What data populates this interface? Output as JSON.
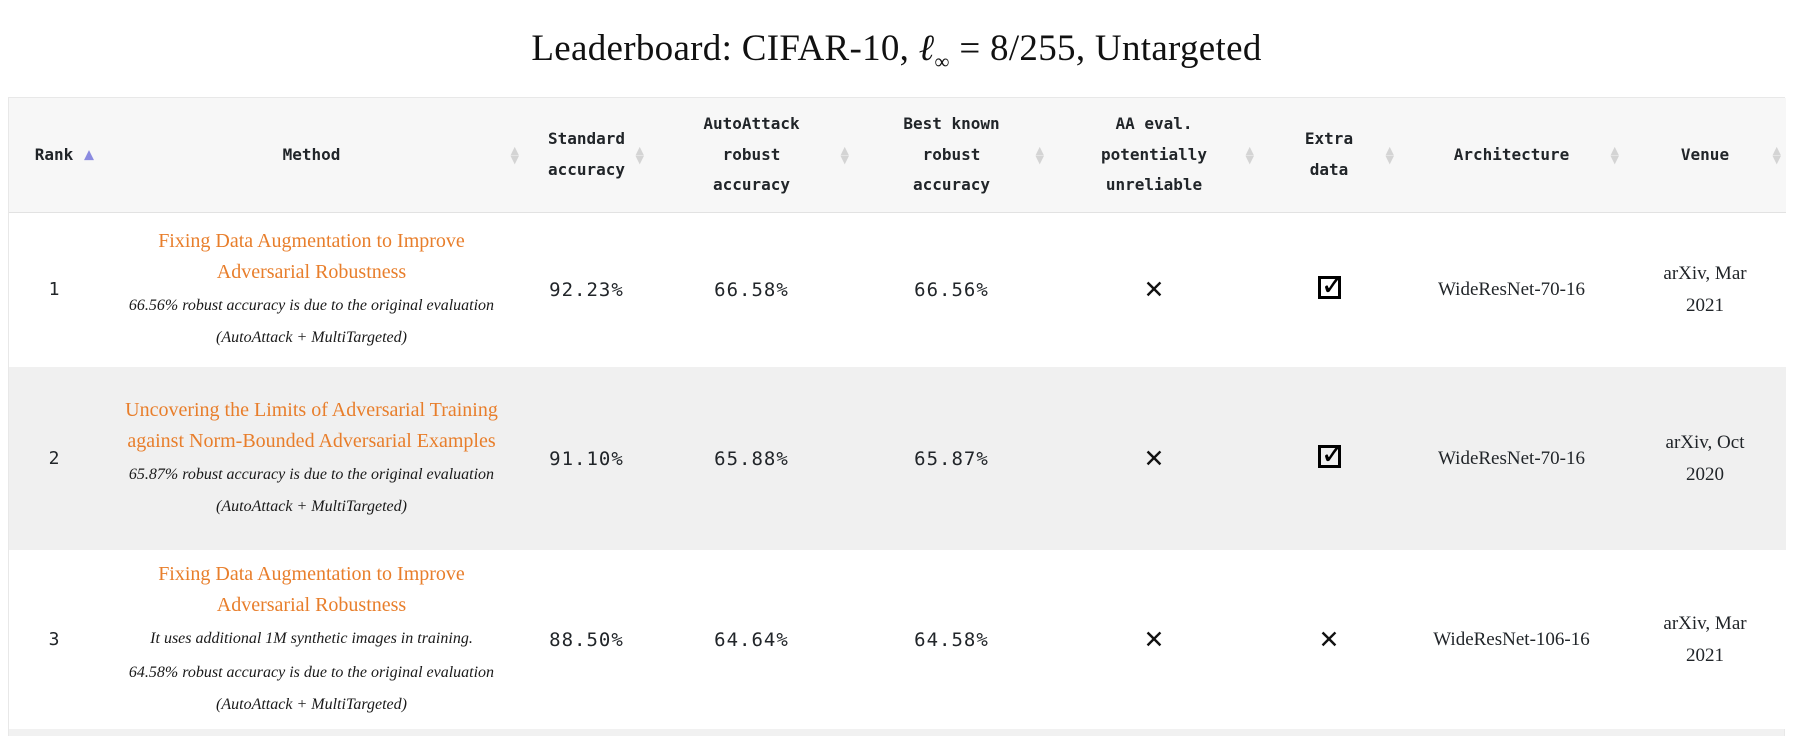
{
  "title": {
    "part1": "Leaderboard: CIFAR-10, ",
    "ell": "ℓ",
    "sub": "∞",
    "part2": " = 8/255, Untargeted"
  },
  "table": {
    "columns": [
      {
        "label": "Rank",
        "sort": "asc"
      },
      {
        "label": "Method",
        "sort": "both"
      },
      {
        "label": "Standard accuracy",
        "sort": "both"
      },
      {
        "label": "AutoAttack robust accuracy",
        "sort": "both"
      },
      {
        "label": "Best known robust accuracy",
        "sort": "both"
      },
      {
        "label": "AA eval. potentially unreliable",
        "sort": "both"
      },
      {
        "label": "Extra data",
        "sort": "both"
      },
      {
        "label": "Architecture",
        "sort": "both"
      },
      {
        "label": "Venue",
        "sort": "both"
      }
    ],
    "rows": [
      {
        "rank": "1",
        "method": "Fixing Data Augmentation to Improve Adversarial Robustness",
        "notes": [
          "66.56% robust accuracy is due to the original evaluation (AutoAttack + MultiTargeted)"
        ],
        "standard_accuracy": "92.23%",
        "autoattack_robust_accuracy": "66.58%",
        "best_known_robust_accuracy": "66.56%",
        "aa_eval_unreliable": "no",
        "extra_data": "yes",
        "architecture": "WideResNet-70-16",
        "venue": "arXiv, Mar 2021"
      },
      {
        "rank": "2",
        "method": "Uncovering the Limits of Adversarial Training against Norm-Bounded Adversarial Examples",
        "notes": [
          "65.87% robust accuracy is due to the original evaluation (AutoAttack + MultiTargeted)"
        ],
        "standard_accuracy": "91.10%",
        "autoattack_robust_accuracy": "65.88%",
        "best_known_robust_accuracy": "65.87%",
        "aa_eval_unreliable": "no",
        "extra_data": "yes",
        "architecture": "WideResNet-70-16",
        "venue": "arXiv, Oct 2020"
      },
      {
        "rank": "3",
        "method": "Fixing Data Augmentation to Improve Adversarial Robustness",
        "notes": [
          "It uses additional 1M synthetic images in training.",
          "64.58% robust accuracy is due to the original evaluation (AutoAttack + MultiTargeted)"
        ],
        "standard_accuracy": "88.50%",
        "autoattack_robust_accuracy": "64.64%",
        "best_known_robust_accuracy": "64.58%",
        "aa_eval_unreliable": "no",
        "extra_data": "no",
        "architecture": "WideResNet-106-16",
        "venue": "arXiv, Mar 2021"
      }
    ]
  },
  "icons": {
    "checked": "✓",
    "cross": "✕",
    "sort_asc": "▲",
    "sort_desc": "▼"
  },
  "colors": {
    "link_orange": "#e87e2b",
    "sort_active": "#8b8be0",
    "sort_idle": "#d4d4d4",
    "stripe": "#f0f0f0"
  }
}
